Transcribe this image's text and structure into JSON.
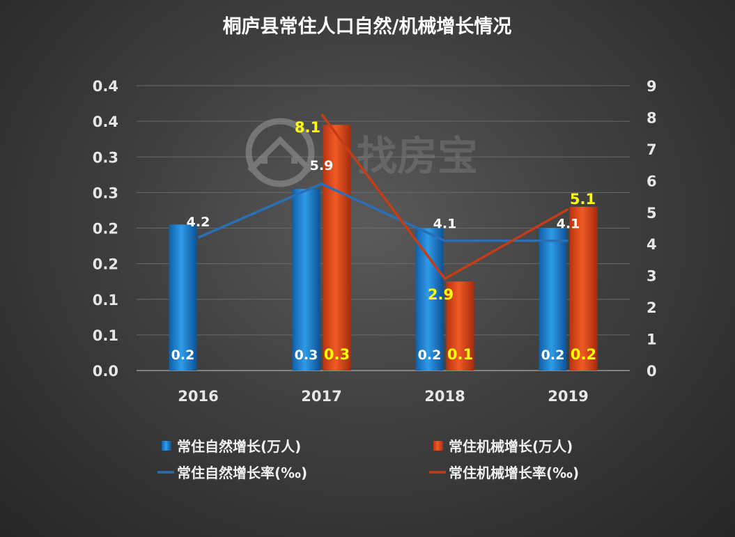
{
  "chart_data": {
    "type": "bar+line",
    "title": "桐庐县常住人口自然/机械增长情况",
    "categories": [
      "2016",
      "2017",
      "2018",
      "2019"
    ],
    "left_axis": {
      "range": [
        0,
        0.4
      ],
      "tick_labels": [
        "0.0",
        "0.1",
        "0.1",
        "0.2",
        "0.2",
        "0.3",
        "0.3",
        "0.4",
        "0.4"
      ]
    },
    "right_axis": {
      "range": [
        0,
        9
      ],
      "tick_labels": [
        "0",
        "1",
        "2",
        "3",
        "4",
        "5",
        "6",
        "7",
        "8",
        "9"
      ]
    },
    "series": [
      {
        "name": "常住自然增长(万人)",
        "type": "bar",
        "axis": "left",
        "color": "#1f7fd0",
        "values": [
          0.2,
          0.3,
          0.2,
          0.2
        ],
        "labels": [
          "0.2",
          "0.3",
          "0.2",
          "0.2"
        ]
      },
      {
        "name": "常住机械增长(万人)",
        "type": "bar",
        "axis": "left",
        "color": "#d8451a",
        "values": [
          null,
          0.3,
          0.1,
          0.2
        ],
        "labels": [
          null,
          "0.3",
          "0.1",
          "0.2"
        ]
      },
      {
        "name": "常住自然增长率(‰)",
        "type": "line",
        "axis": "right",
        "color": "#2a6fb5",
        "values": [
          4.2,
          5.9,
          4.1,
          4.1
        ],
        "labels": [
          "4.2",
          "5.9",
          "4.1",
          "4.1"
        ]
      },
      {
        "name": "常住机械增长率(‰)",
        "type": "line",
        "axis": "right",
        "color": "#c43d16",
        "values": [
          null,
          8.1,
          2.9,
          5.1
        ],
        "labels": [
          null,
          "8.1",
          "2.9",
          "5.1"
        ]
      }
    ],
    "bar_heights_left_units": {
      "natural": [
        0.205,
        0.255,
        0.2,
        0.2
      ],
      "mechanical": [
        null,
        0.345,
        0.125,
        0.23
      ]
    },
    "grid": true,
    "legend_position": "bottom"
  },
  "watermark": {
    "text": "找房宝",
    "icon": "house-in-circle-icon"
  }
}
